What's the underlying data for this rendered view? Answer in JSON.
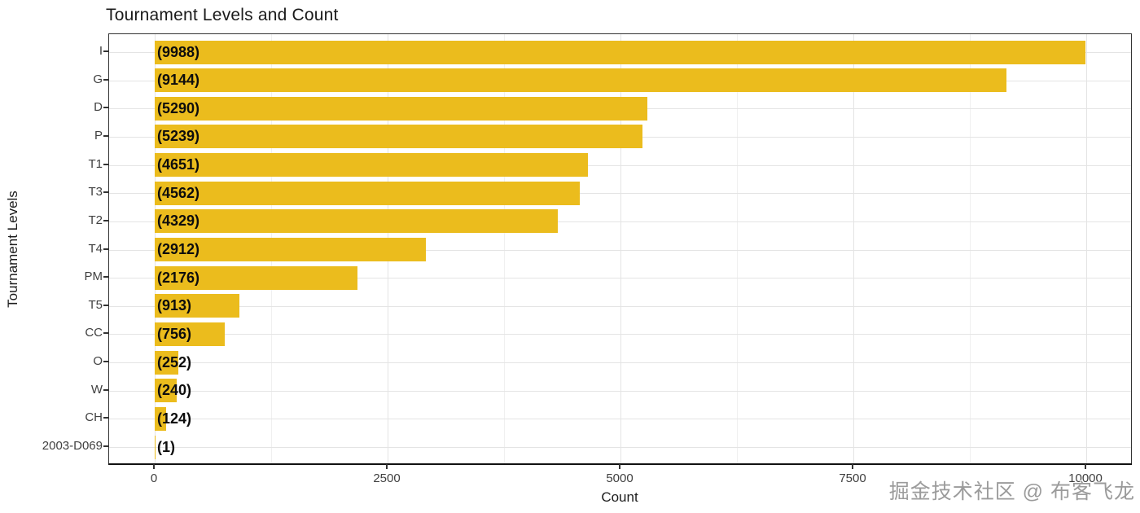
{
  "watermark": {
    "text": "掘金技术社区 @ 布客飞龙",
    "color": "#9b9b9b"
  },
  "colors": {
    "bar": "#EBBC1D",
    "grid_major": "#e4e4e4",
    "grid_minor": "#f0f0f0",
    "panel_border": "#333333",
    "tick_label": "#404040",
    "title_text": "#1a1a1a",
    "value_label": "#0d0d0d"
  },
  "chart_data": {
    "type": "bar",
    "orientation": "horizontal",
    "title": "Tournament Levels and Count",
    "xlabel": "Count",
    "ylabel": "Tournament Levels",
    "categories": [
      "I",
      "G",
      "D",
      "P",
      "T1",
      "T3",
      "T2",
      "T4",
      "PM",
      "T5",
      "CC",
      "O",
      "W",
      "CH",
      "2003-D069"
    ],
    "values": [
      9988,
      9144,
      5290,
      5239,
      4651,
      4562,
      4329,
      2912,
      2176,
      913,
      756,
      252,
      240,
      124,
      1
    ],
    "bar_labels": [
      "(9988)",
      "(9144)",
      "(5290)",
      "(5239)",
      "(4651)",
      "(4562)",
      "(4329)",
      "(2912)",
      "(2176)",
      "(913)",
      "(756)",
      "(252)",
      "(240)",
      "(124)",
      "(1)"
    ],
    "xlim": [
      0,
      10000
    ],
    "xticks": [
      0,
      2500,
      5000,
      7500,
      10000
    ],
    "xticks_minor": [
      1250,
      3750,
      6250,
      8750
    ],
    "grid": true,
    "legend": false,
    "bar_color": "#EBBC1D"
  }
}
